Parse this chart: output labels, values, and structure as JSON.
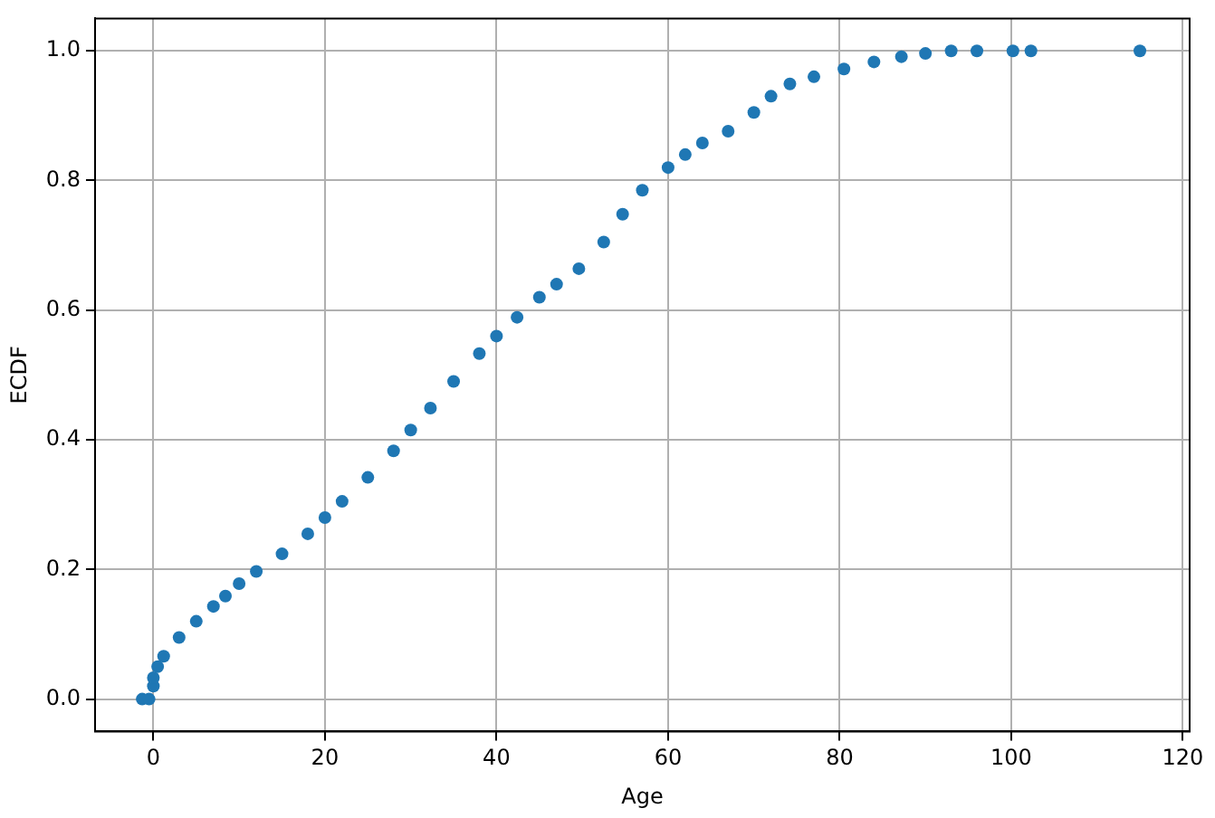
{
  "chart_data": {
    "type": "scatter",
    "xlabel": "Age",
    "ylabel": "ECDF",
    "marker": "circle",
    "grid": true,
    "xlim": [
      -6.8,
      120.8
    ],
    "ylim": [
      -0.05,
      1.05
    ],
    "xticks": [
      0,
      20,
      40,
      60,
      80,
      100,
      120
    ],
    "yticks": [
      {
        "value": 0,
        "label": "0.0"
      },
      {
        "value": 0.2,
        "label": "0.2"
      },
      {
        "value": 0.4,
        "label": "0.4"
      },
      {
        "value": 0.6,
        "label": "0.6"
      },
      {
        "value": 0.8,
        "label": "0.8"
      },
      {
        "value": 1,
        "label": "1.0"
      }
    ],
    "series": [
      {
        "color": "#1f77b4",
        "x": [
          -1.3,
          -0.5,
          0,
          0,
          0.5,
          1.2,
          3,
          5,
          7,
          8.4,
          10,
          12,
          15,
          18,
          20,
          22,
          25,
          28,
          30,
          32.3,
          35,
          38,
          40,
          42.4,
          45,
          47,
          49.6,
          52.5,
          54.7,
          57,
          60,
          62,
          64,
          67,
          70,
          72,
          74.2,
          77,
          80.5,
          84,
          87.2,
          90,
          93,
          96,
          100.2,
          102.3,
          115
        ],
        "values": [
          0,
          0,
          0.02,
          0.033,
          0.05,
          0.066,
          0.095,
          0.12,
          0.143,
          0.159,
          0.178,
          0.197,
          0.224,
          0.255,
          0.28,
          0.305,
          0.342,
          0.383,
          0.415,
          0.449,
          0.49,
          0.533,
          0.56,
          0.589,
          0.62,
          0.64,
          0.664,
          0.705,
          0.748,
          0.785,
          0.82,
          0.84,
          0.858,
          0.876,
          0.905,
          0.93,
          0.949,
          0.96,
          0.972,
          0.983,
          0.991,
          0.996,
          1,
          1,
          1,
          1,
          1
        ]
      }
    ]
  }
}
